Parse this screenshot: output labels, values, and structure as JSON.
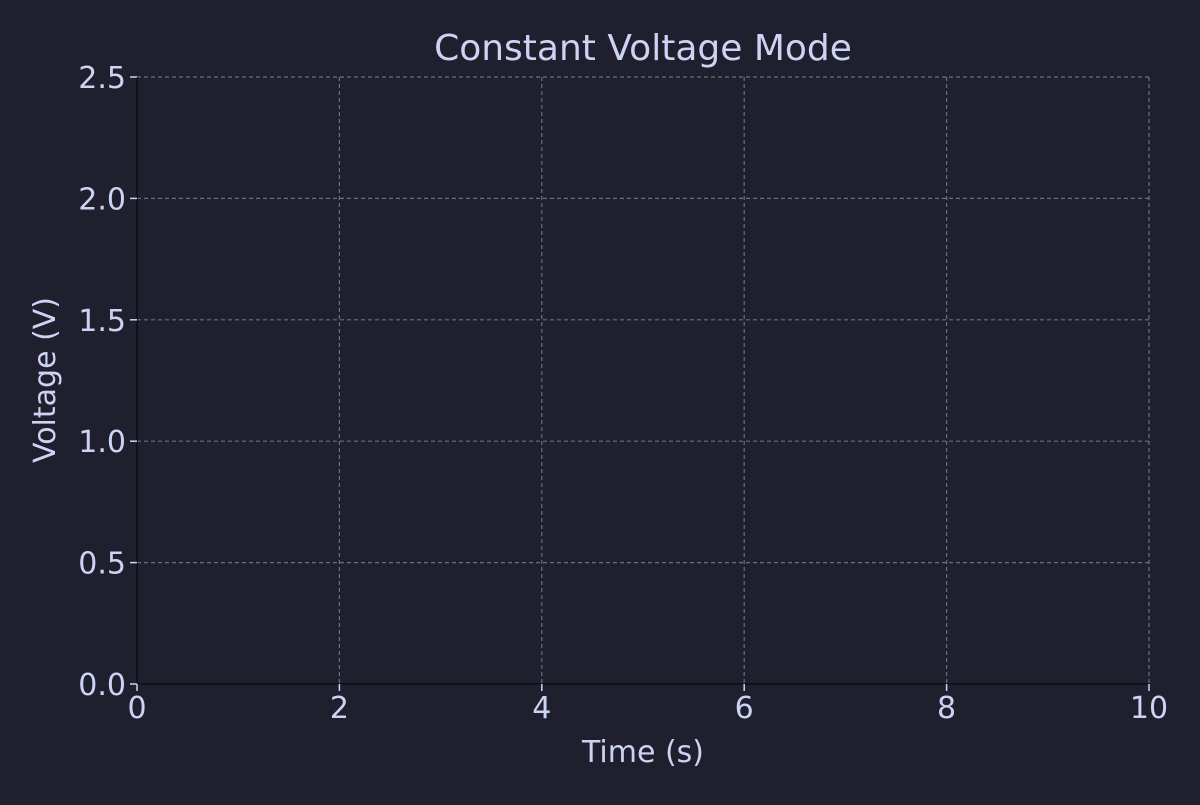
{
  "colors": {
    "background": "#1f1f2e",
    "text": "#cdd3f5",
    "grid": "#6e6e80",
    "axis": "#111118"
  },
  "chart_data": {
    "type": "line",
    "title": "Constant Voltage Mode",
    "xlabel": "Time (s)",
    "ylabel": "Voltage (V)",
    "xlim": [
      0,
      10
    ],
    "ylim": [
      0,
      2.5
    ],
    "x_ticks": [
      0,
      2,
      4,
      6,
      8,
      10
    ],
    "x_tick_labels": [
      "0",
      "2",
      "4",
      "6",
      "8",
      "10"
    ],
    "y_ticks": [
      0.0,
      0.5,
      1.0,
      1.5,
      2.0,
      2.5
    ],
    "y_tick_labels": [
      "0.0",
      "0.5",
      "1.0",
      "1.5",
      "2.0",
      "2.5"
    ],
    "grid": true,
    "grid_style": "dashed",
    "series": []
  }
}
